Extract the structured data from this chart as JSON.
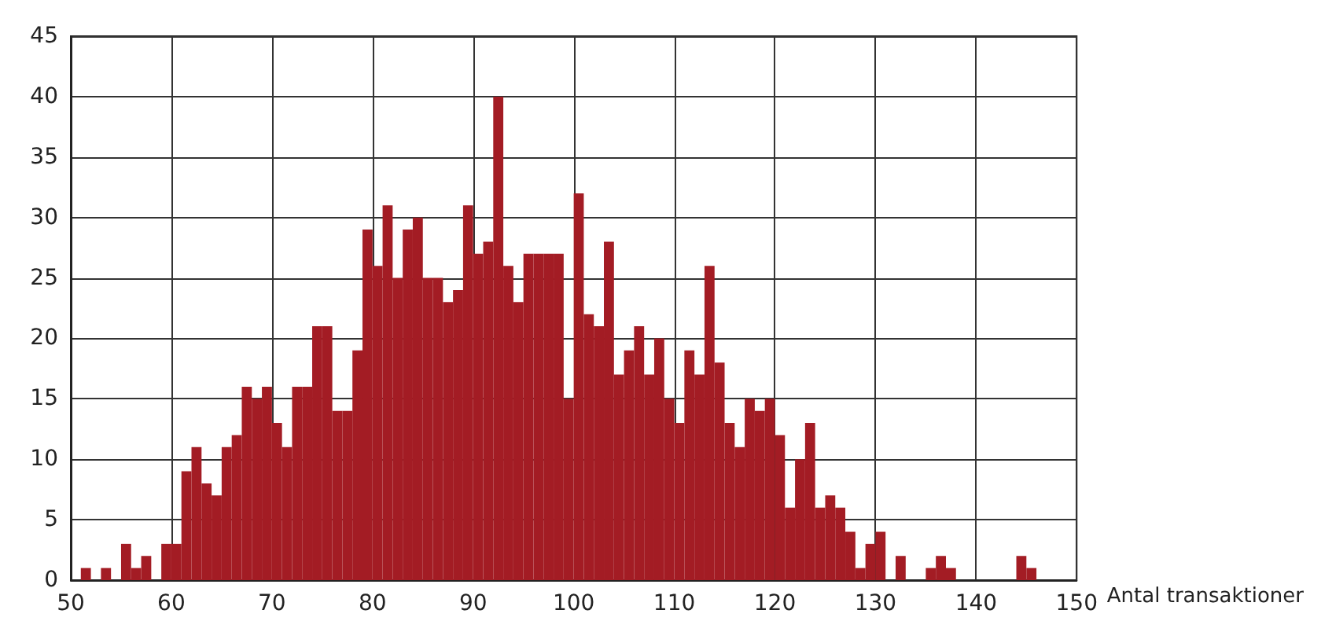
{
  "chart_data": {
    "type": "histogram",
    "xlabel": "Antal transaktioner",
    "color": "#a31c24",
    "bins": [
      50,
      51,
      52,
      53,
      54,
      55,
      56,
      57,
      58,
      59,
      60,
      61,
      62,
      63,
      64,
      65,
      66,
      67,
      68,
      69,
      70,
      71,
      72,
      73,
      74,
      75,
      76,
      77,
      78,
      79,
      80,
      81,
      82,
      83,
      84,
      85,
      86,
      87,
      88,
      89,
      90,
      91,
      92,
      93,
      94,
      95,
      96,
      97,
      98,
      99,
      100,
      101,
      102,
      103,
      104,
      105,
      106,
      107,
      108,
      109,
      110,
      111,
      112,
      113,
      114,
      115,
      116,
      117,
      118,
      119,
      120,
      121,
      122,
      123,
      124,
      125,
      126,
      127,
      128,
      129,
      130,
      131,
      132,
      133,
      134,
      135,
      136,
      137,
      138,
      139,
      140,
      141,
      142,
      143,
      144,
      145,
      146,
      147
    ],
    "values": [
      0,
      1,
      0,
      1,
      0,
      3,
      1,
      2,
      0,
      3,
      3,
      9,
      11,
      8,
      7,
      11,
      12,
      16,
      15,
      16,
      13,
      11,
      16,
      16,
      21,
      21,
      14,
      14,
      19,
      29,
      26,
      31,
      25,
      29,
      30,
      25,
      25,
      23,
      24,
      31,
      27,
      28,
      40,
      26,
      23,
      27,
      27,
      27,
      27,
      15,
      32,
      22,
      21,
      28,
      17,
      19,
      21,
      17,
      20,
      15,
      13,
      19,
      17,
      26,
      18,
      13,
      11,
      15,
      14,
      15,
      12,
      6,
      10,
      13,
      6,
      7,
      6,
      4,
      1,
      3,
      4,
      0,
      2,
      0,
      0,
      1,
      2,
      1,
      0,
      0,
      0,
      0,
      0,
      0,
      2,
      1,
      0
    ],
    "xlim": [
      50,
      150
    ],
    "xticks": [
      50,
      60,
      70,
      80,
      90,
      100,
      110,
      120,
      130,
      140,
      150
    ],
    "ylim": [
      0,
      45
    ],
    "yticks": [
      0,
      5,
      10,
      15,
      20,
      25,
      30,
      35,
      40,
      45
    ],
    "grid": true
  }
}
